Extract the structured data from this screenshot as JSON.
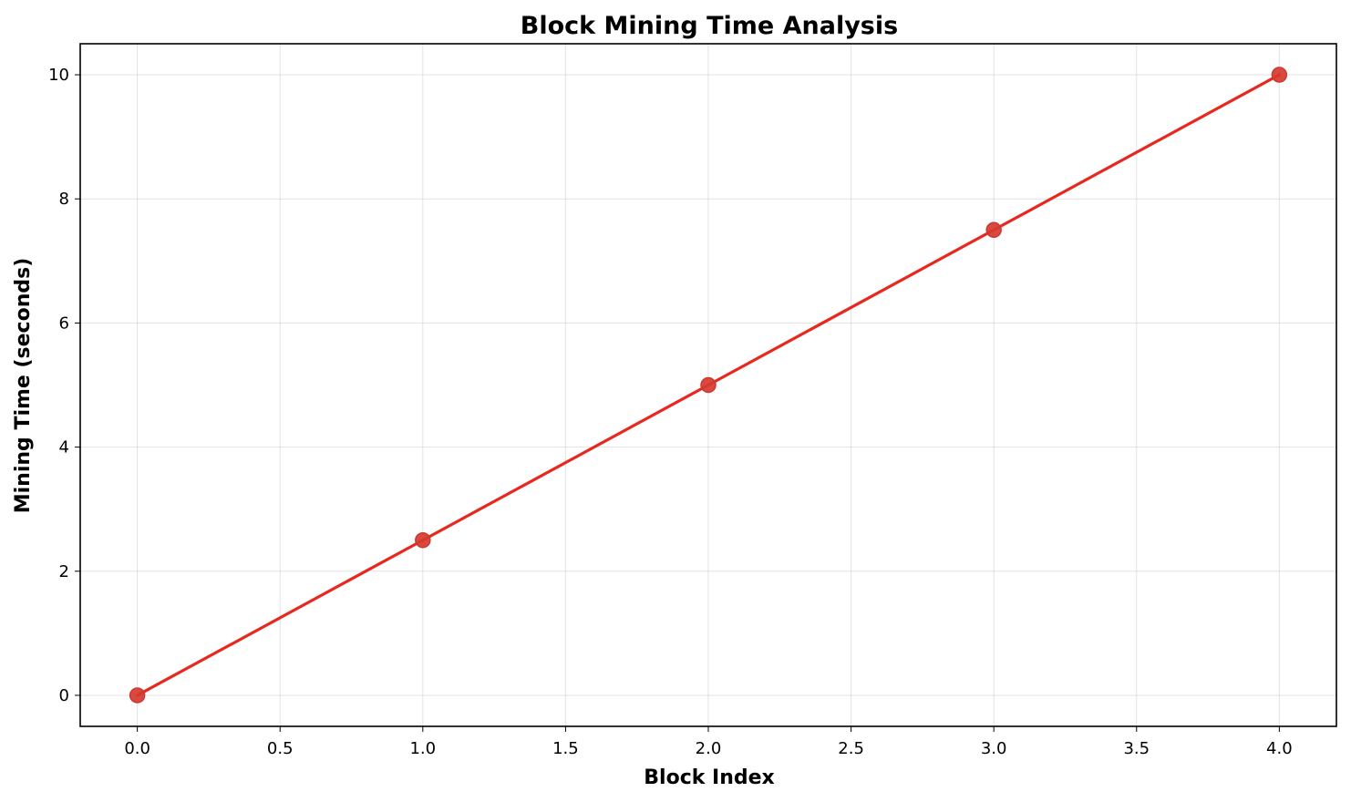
{
  "chart_data": {
    "type": "line",
    "title": "Block Mining Time Analysis",
    "xlabel": "Block Index",
    "ylabel": "Mining Time (seconds)",
    "xlim": [
      -0.2,
      4.2
    ],
    "ylim": [
      -0.5,
      10.5
    ],
    "xticks": [
      0.0,
      0.5,
      1.0,
      1.5,
      2.0,
      2.5,
      3.0,
      3.5,
      4.0
    ],
    "xtick_labels": [
      "0.0",
      "0.5",
      "1.0",
      "1.5",
      "2.0",
      "2.5",
      "3.0",
      "3.5",
      "4.0"
    ],
    "yticks": [
      0,
      2,
      4,
      6,
      8,
      10
    ],
    "ytick_labels": [
      "0",
      "2",
      "4",
      "6",
      "8",
      "10"
    ],
    "grid": true,
    "series": [
      {
        "x": [
          0,
          1,
          2,
          3,
          4
        ],
        "y": [
          0,
          2.5,
          5,
          7.5,
          10
        ],
        "color": "#e8281e",
        "marker_color": "#d63a2f",
        "marker": "circle"
      }
    ]
  }
}
